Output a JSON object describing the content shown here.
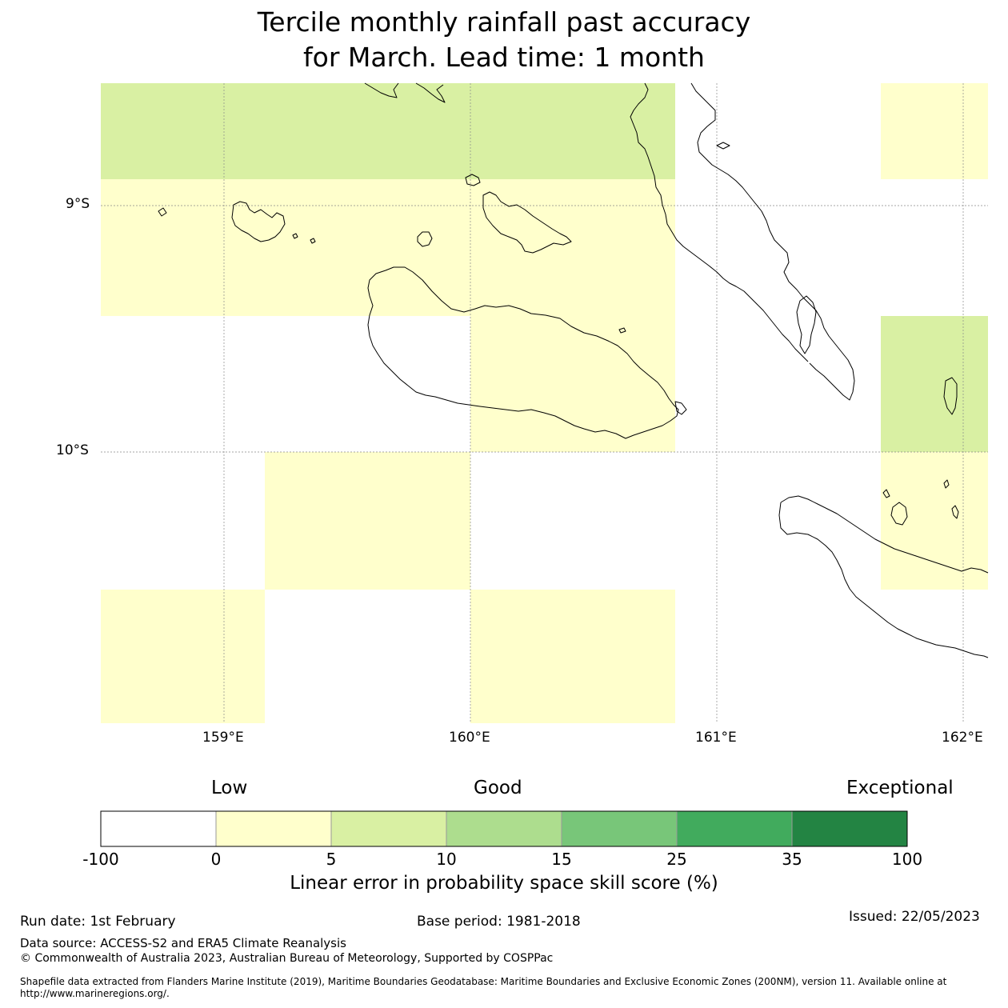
{
  "title": {
    "line1": "Tercile monthly rainfall past accuracy",
    "line2": "for March. Lead time: 1 month"
  },
  "map": {
    "lon_labels": [
      "159°E",
      "160°E",
      "161°E",
      "162°E"
    ],
    "lat_labels": [
      "9°S",
      "10°S"
    ],
    "cells": [
      {
        "category": "5-10",
        "lon": [
          158.5,
          160.83
        ],
        "lat": [
          -8.5,
          -8.89
        ]
      },
      {
        "category": "0-5",
        "lon": [
          158.5,
          160.83
        ],
        "lat": [
          -8.89,
          -9.44
        ]
      },
      {
        "category": "0-5",
        "lon": [
          160.0,
          160.83
        ],
        "lat": [
          -9.44,
          -10.0
        ]
      },
      {
        "category": "0-5",
        "lon": [
          159.17,
          160.0
        ],
        "lat": [
          -10.0,
          -10.56
        ]
      },
      {
        "category": "0-5",
        "lon": [
          158.5,
          159.17
        ],
        "lat": [
          -10.56,
          -11.1
        ]
      },
      {
        "category": "0-5",
        "lon": [
          160.0,
          160.83
        ],
        "lat": [
          -10.56,
          -11.1
        ]
      },
      {
        "category": "0-5",
        "lon": [
          161.67,
          162.1
        ],
        "lat": [
          -8.5,
          -8.89
        ]
      },
      {
        "category": "5-10",
        "lon": [
          161.67,
          162.1
        ],
        "lat": [
          -9.44,
          -10.0
        ]
      },
      {
        "category": "0-5",
        "lon": [
          161.67,
          162.1
        ],
        "lat": [
          -10.0,
          -10.56
        ]
      }
    ]
  },
  "legend": {
    "low": "Low",
    "good": "Good",
    "exceptional": "Exceptional",
    "title": "Linear error in probability space skill score (%)",
    "ticks": [
      "-100",
      "0",
      "5",
      "10",
      "15",
      "25",
      "35",
      "100"
    ],
    "colors": [
      "#ffffff",
      "#ffffcc",
      "#d9f0a3",
      "#addd8e",
      "#78c679",
      "#41ab5d",
      "#238443"
    ]
  },
  "footer": {
    "run_date": "Run date: 1st February",
    "base_period": "Base period: 1981-2018",
    "issued": "Issued: 22/05/2023",
    "data_source": "Data source: ACCESS-S2 and ERA5 Climate Reanalysis",
    "copyright": "© Commonwealth of Australia 2023, Australian Bureau of Meteorology, Supported by COSPPac",
    "shapefile_line1": "Shapefile data extracted from Flanders Marine Institute (2019), Maritime Boundaries Geodatabase: Maritime Boundaries and Exclusive Economic Zones (200NM), version 11. Available online at",
    "shapefile_line2": "http://www.marineregions.org/."
  }
}
